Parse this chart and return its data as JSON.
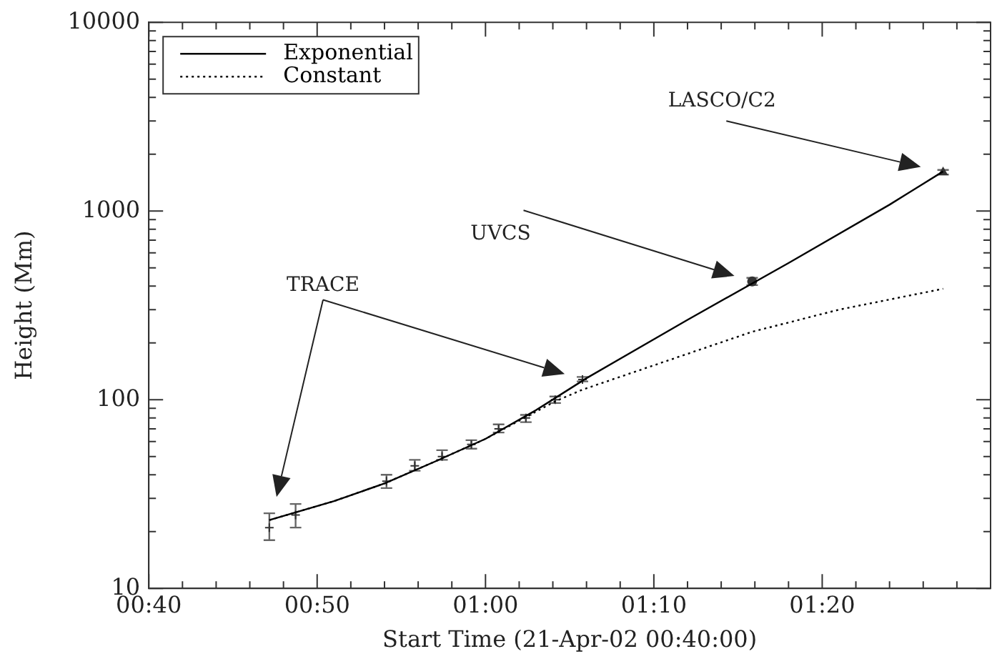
{
  "chart_data": {
    "type": "line",
    "xlabel": "Start Time (21-Apr-02 00:40:00)",
    "ylabel": "Height (Mm)",
    "xlim": [
      0.666667,
      1.5
    ],
    "xticks": [
      {
        "value": 0.666667,
        "label": "00:40"
      },
      {
        "value": 0.833333,
        "label": "00:50"
      },
      {
        "value": 1,
        "label": "01:00"
      },
      {
        "value": 1.166667,
        "label": "01:10"
      },
      {
        "value": 1.333333,
        "label": "01:20"
      }
    ],
    "ylim": [
      10,
      10000
    ],
    "yticks": [
      10,
      100,
      1000,
      10000
    ],
    "log": "y",
    "grid": false,
    "legend": "top left",
    "series": [
      {
        "name": "Exponential",
        "type": "line",
        "color": "#000000",
        "line_style": "solid",
        "marker": "none",
        "x": [
          0.786,
          0.85,
          0.9,
          0.95,
          1.0,
          1.05,
          1.1,
          1.2,
          1.3,
          1.4,
          1.453
        ],
        "values": [
          23,
          29,
          36,
          47,
          62,
          88,
          130,
          265,
          530,
          1080,
          1620
        ]
      },
      {
        "name": "Constant",
        "type": "line",
        "color": "#000000",
        "line_style": "dotted",
        "marker": "none",
        "x": [
          0.786,
          0.85,
          0.9,
          0.95,
          1.0,
          1.069,
          1.096,
          1.2,
          1.264,
          1.35,
          1.453
        ],
        "values": [
          23,
          29,
          36,
          47,
          62,
          98,
          113,
          175,
          229,
          300,
          387
        ]
      },
      {
        "type": "scatter",
        "color": "#333333",
        "marker": "cross",
        "x": [
          0.786,
          0.812,
          0.902,
          0.93,
          0.957,
          0.986,
          1.013,
          1.04,
          1.069,
          1.096
        ],
        "values": [
          21,
          24.5,
          37,
          44.6,
          50,
          58,
          70,
          80,
          100,
          128
        ],
        "errors": [
          [
            18,
            25
          ],
          [
            21,
            28
          ],
          [
            34,
            40
          ],
          [
            42,
            48
          ],
          [
            48,
            54
          ],
          [
            55,
            61
          ],
          [
            67,
            74
          ],
          [
            76,
            83
          ],
          [
            96,
            104
          ],
          [
            125,
            132
          ]
        ]
      },
      {
        "type": "scatter",
        "color": "#333333",
        "marker": "circle",
        "x": [
          1.264
        ],
        "values": [
          423
        ],
        "errors": [
          [
            405,
            442
          ]
        ]
      },
      {
        "type": "scatter",
        "color": "#333333",
        "marker": "triangle",
        "x": [
          1.453
        ],
        "values": [
          1606
        ],
        "errors": [
          [
            1560,
            1650
          ]
        ]
      }
    ],
    "annotations": [
      "TRACE",
      "UVCS",
      "LASCO/C2"
    ]
  }
}
